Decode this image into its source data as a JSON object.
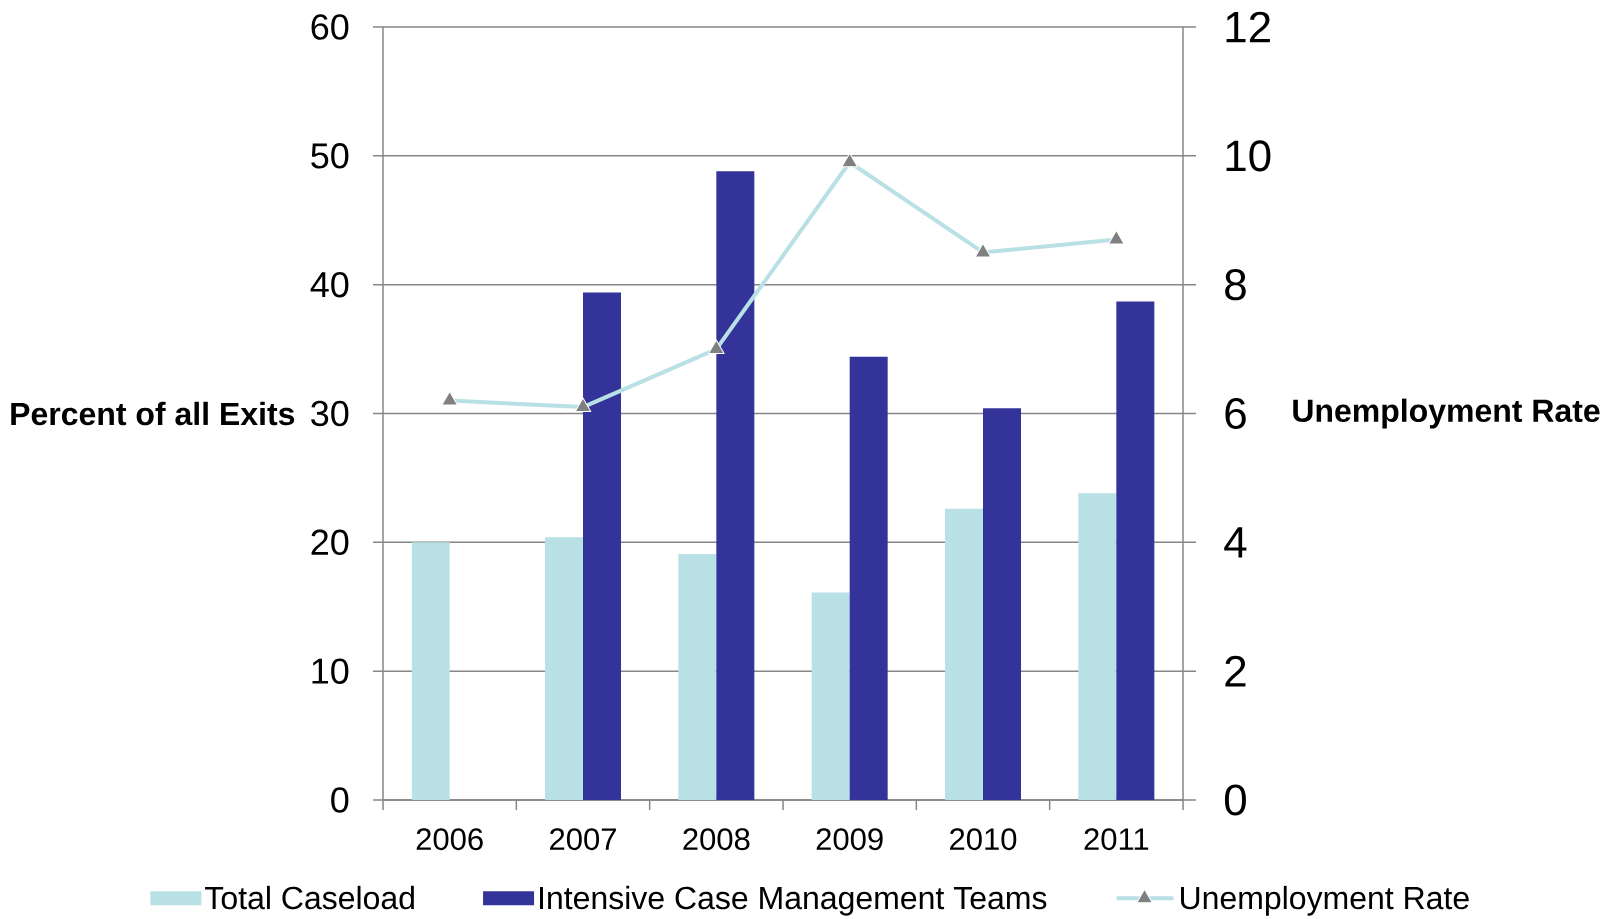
{
  "chart_data": {
    "type": "bar",
    "categories": [
      "2006",
      "2007",
      "2008",
      "2009",
      "2010",
      "2011"
    ],
    "series": [
      {
        "name": "Total Caseload",
        "color": "#b9e0e4",
        "values": [
          20.0,
          20.4,
          19.1,
          16.1,
          22.6,
          23.8
        ]
      },
      {
        "name": "Intensive Case Management Teams",
        "color": "#333399",
        "values": [
          null,
          39.4,
          48.8,
          34.4,
          30.4,
          38.7
        ]
      },
      {
        "name": "Unemployment Rate",
        "type": "line",
        "axis": "y2",
        "color": "#b9e0e4",
        "marker": "triangle",
        "line_style": "solid",
        "values": [
          6.2,
          6.1,
          7.0,
          9.9,
          8.5,
          8.7
        ]
      }
    ],
    "ylabel": "Percent of all Exits",
    "y2label": "Unemployment Rate",
    "ylim": [
      0,
      60
    ],
    "yticks": [
      0,
      10,
      20,
      30,
      40,
      50,
      60
    ],
    "y2lim": [
      0,
      12
    ],
    "y2ticks": [
      0,
      2,
      4,
      6,
      8,
      10,
      12
    ],
    "grid": "y",
    "legend": "bottom"
  }
}
